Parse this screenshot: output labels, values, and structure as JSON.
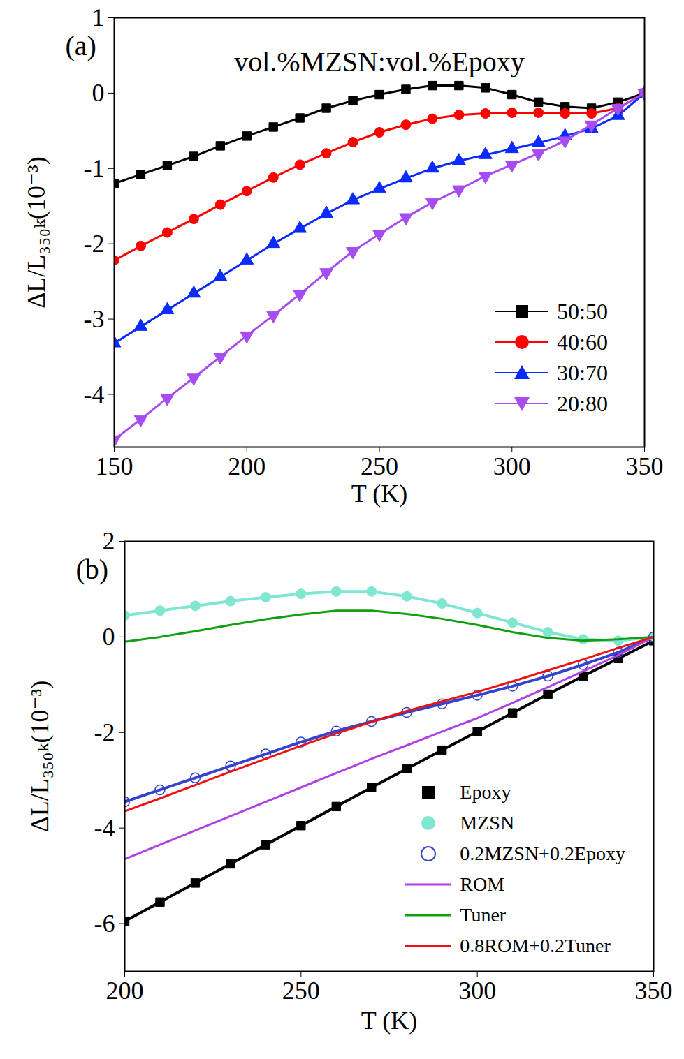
{
  "chart_data": [
    {
      "type": "line",
      "annotations": [
        "(a)",
        "vol.%MZSN:vol.%Epoxy"
      ],
      "x_label": "T (K)",
      "y_label": "ΔL/L₃₅₀ₖ(10⁻³)",
      "xlim": [
        150,
        350
      ],
      "ylim": [
        -4.7,
        1
      ],
      "xticks": [
        150,
        200,
        250,
        300,
        350
      ],
      "yticks": [
        -4,
        -3,
        -2,
        -1,
        0,
        1
      ],
      "legend": "bottom-right",
      "x": [
        150,
        160,
        170,
        180,
        190,
        200,
        210,
        220,
        230,
        240,
        250,
        260,
        270,
        280,
        290,
        300,
        310,
        320,
        330,
        340,
        350
      ],
      "series": [
        {
          "name": "50:50",
          "color": "#000000",
          "marker": "square",
          "line_style": "solid",
          "values": [
            -1.2,
            -1.08,
            -0.96,
            -0.84,
            -0.7,
            -0.57,
            -0.45,
            -0.33,
            -0.2,
            -0.1,
            -0.02,
            0.05,
            0.1,
            0.1,
            0.07,
            -0.02,
            -0.12,
            -0.18,
            -0.2,
            -0.12,
            0
          ]
        },
        {
          "name": "40:60",
          "color": "#ff0000",
          "marker": "circle",
          "line_style": "solid",
          "values": [
            -2.22,
            -2.03,
            -1.85,
            -1.67,
            -1.48,
            -1.3,
            -1.12,
            -0.95,
            -0.8,
            -0.65,
            -0.52,
            -0.42,
            -0.34,
            -0.29,
            -0.27,
            -0.26,
            -0.26,
            -0.27,
            -0.27,
            -0.2,
            0
          ]
        },
        {
          "name": "30:70",
          "color": "#0a2bff",
          "marker": "triangle",
          "line_style": "solid",
          "values": [
            -3.32,
            -3.1,
            -2.88,
            -2.66,
            -2.44,
            -2.22,
            -2.0,
            -1.8,
            -1.6,
            -1.42,
            -1.27,
            -1.13,
            -1.0,
            -0.9,
            -0.82,
            -0.74,
            -0.66,
            -0.57,
            -0.47,
            -0.3,
            0
          ]
        },
        {
          "name": "20:80",
          "color": "#a64cf0",
          "marker": "triangle-down",
          "line_style": "solid",
          "values": [
            -4.6,
            -4.33,
            -4.05,
            -3.78,
            -3.5,
            -3.22,
            -2.95,
            -2.67,
            -2.38,
            -2.1,
            -1.87,
            -1.65,
            -1.45,
            -1.28,
            -1.1,
            -0.95,
            -0.8,
            -0.63,
            -0.42,
            -0.2,
            0
          ]
        }
      ]
    },
    {
      "type": "line",
      "annotations": [
        "(b)"
      ],
      "x_label": "T (K)",
      "y_label": "ΔL/L₃₅₀ₖ(10⁻³)",
      "xlim": [
        200,
        350
      ],
      "ylim": [
        -7,
        2
      ],
      "xticks": [
        200,
        250,
        300,
        350
      ],
      "yticks": [
        -6,
        -4,
        -2,
        0,
        2
      ],
      "legend": "bottom-right",
      "x": [
        200,
        210,
        220,
        230,
        240,
        250,
        260,
        270,
        280,
        290,
        300,
        310,
        320,
        330,
        340,
        350
      ],
      "series": [
        {
          "name": "Epoxy",
          "color": "#000000",
          "marker": "square",
          "values": [
            -5.95,
            -5.55,
            -5.15,
            -4.75,
            -4.35,
            -3.95,
            -3.55,
            -3.15,
            -2.76,
            -2.37,
            -1.98,
            -1.59,
            -1.2,
            -0.82,
            -0.45,
            -0.08
          ]
        },
        {
          "name": "MZSN",
          "color": "#7fe6d2",
          "marker": "circle",
          "values": [
            0.45,
            0.55,
            0.65,
            0.75,
            0.83,
            0.9,
            0.95,
            0.95,
            0.85,
            0.7,
            0.5,
            0.3,
            0.1,
            -0.05,
            -0.08,
            0
          ]
        },
        {
          "name": "0.2MZSN+0.2Epoxy",
          "color": "#3344cc",
          "marker": "circle-open",
          "values": [
            -3.45,
            -3.2,
            -2.95,
            -2.7,
            -2.45,
            -2.2,
            -1.97,
            -1.77,
            -1.58,
            -1.4,
            -1.22,
            -1.03,
            -0.82,
            -0.58,
            -0.32,
            0
          ]
        },
        {
          "name": "ROM",
          "color": "#b040e0",
          "line_style": "solid",
          "values": [
            -4.65,
            -4.35,
            -4.05,
            -3.75,
            -3.45,
            -3.15,
            -2.85,
            -2.55,
            -2.27,
            -1.98,
            -1.7,
            -1.38,
            -1.05,
            -0.72,
            -0.38,
            0
          ]
        },
        {
          "name": "Tuner",
          "color": "#12a012",
          "line_style": "solid",
          "values": [
            -0.1,
            0.0,
            0.12,
            0.25,
            0.37,
            0.47,
            0.55,
            0.55,
            0.48,
            0.38,
            0.25,
            0.1,
            -0.02,
            -0.08,
            -0.05,
            0
          ]
        },
        {
          "name": "0.8ROM+0.2Tuner",
          "color": "#ee1111",
          "line_style": "solid",
          "values": [
            -3.65,
            -3.38,
            -3.1,
            -2.82,
            -2.55,
            -2.28,
            -2.02,
            -1.78,
            -1.55,
            -1.35,
            -1.15,
            -0.93,
            -0.7,
            -0.47,
            -0.23,
            0
          ]
        }
      ]
    }
  ]
}
